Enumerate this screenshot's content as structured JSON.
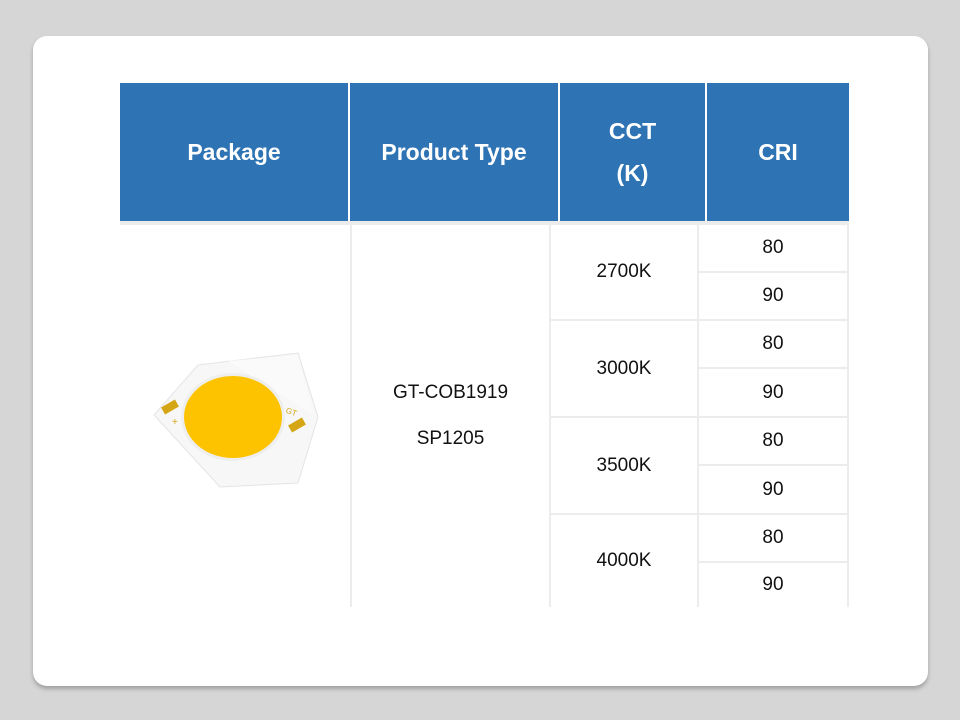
{
  "table": {
    "headers": {
      "package": "Package",
      "product_type": "Product Type",
      "cct_line1": "CCT",
      "cct_line2": "(K)",
      "cri": "CRI"
    },
    "product_type": {
      "line1": "GT-COB1919",
      "line2": "SP1205"
    },
    "package_image": {
      "icon": "cob-led-chip",
      "emitter_color": "#fdc300",
      "pad_color": "#d4a514",
      "marking": "GT"
    },
    "rows": [
      {
        "cct": "2700K",
        "cri": [
          "80",
          "90"
        ]
      },
      {
        "cct": "3000K",
        "cri": [
          "80",
          "90"
        ]
      },
      {
        "cct": "3500K",
        "cri": [
          "80",
          "90"
        ]
      },
      {
        "cct": "4000K",
        "cri": [
          "80",
          "90"
        ]
      }
    ]
  },
  "colors": {
    "header_bg": "#2e74b5",
    "header_text": "#ffffff"
  }
}
